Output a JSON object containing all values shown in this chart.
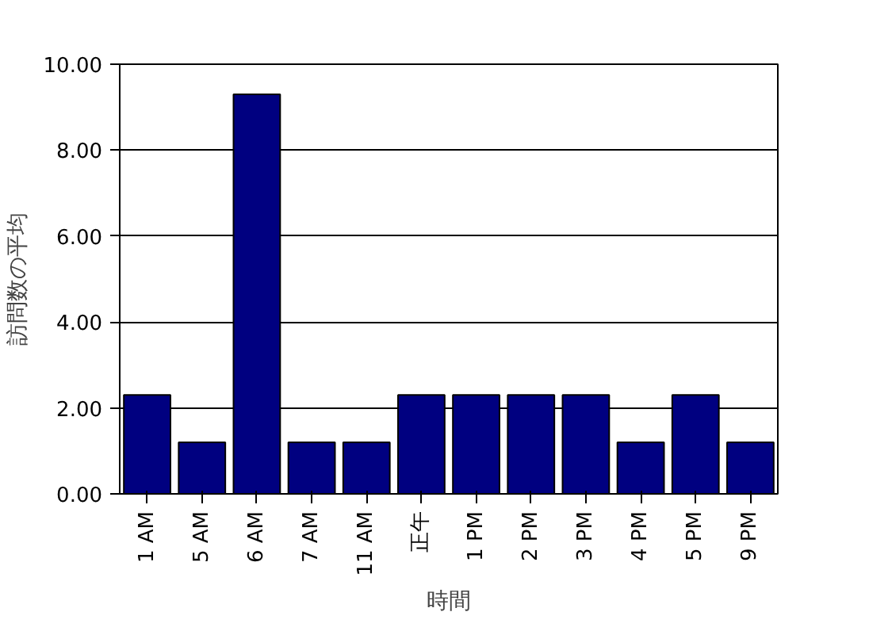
{
  "chart_data": {
    "type": "bar",
    "xlabel": "時間",
    "ylabel": "訪問数の平均",
    "categories": [
      "1 AM",
      "5 AM",
      "6 AM",
      "7 AM",
      "11 AM",
      "正午",
      "1 PM",
      "2 PM",
      "3 PM",
      "4 PM",
      "5 PM",
      "9 PM"
    ],
    "values": [
      2.3,
      1.2,
      9.3,
      1.2,
      1.2,
      2.3,
      2.3,
      2.3,
      2.3,
      1.2,
      2.3,
      1.2
    ],
    "color": "#000080",
    "ylim": [
      0,
      10
    ],
    "yticks": [
      {
        "value": 0,
        "label": "0.00"
      },
      {
        "value": 2,
        "label": "2.00"
      },
      {
        "value": 4,
        "label": "4.00"
      },
      {
        "value": 6,
        "label": "6.00"
      },
      {
        "value": 8,
        "label": "8.00"
      },
      {
        "value": 10,
        "label": "10.00"
      }
    ],
    "grid": "y"
  }
}
